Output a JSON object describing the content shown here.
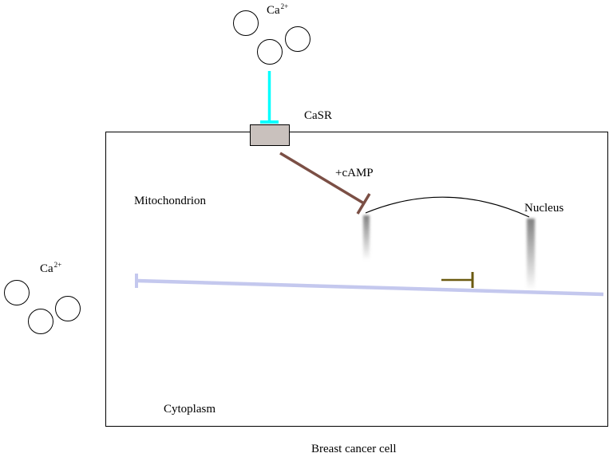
{
  "labels": {
    "calcium_top": {
      "text": "Ca",
      "superscript": "2+"
    },
    "calcium_left": {
      "text": "Ca",
      "superscript": "2+"
    },
    "receptor": "CaSR",
    "camp": "+cAMP",
    "mitochondrion": "Mitochondrion",
    "nucleus": "Nucleus",
    "cytoplasm": "Cytoplasm",
    "cell": "Breast cancer cell"
  },
  "colors": {
    "activation_arrow": "#00ffff",
    "inhibition_camp": "#7b4f45",
    "inhibition_small": "#6b5a10",
    "cytoplasm_line": "#c4c8ee",
    "receptor_fill": "#c9c1bd",
    "outline": "#000000"
  }
}
